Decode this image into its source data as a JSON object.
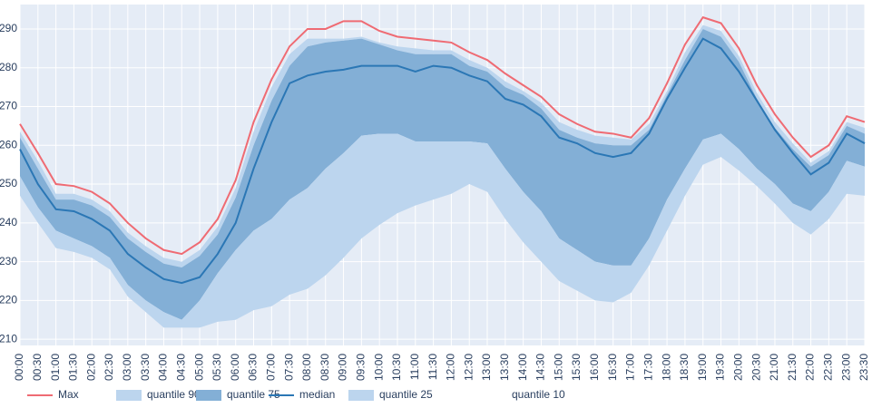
{
  "chart_data": {
    "type": "band",
    "categories": [
      "00:00",
      "00:30",
      "01:00",
      "01:30",
      "02:00",
      "02:30",
      "03:00",
      "03:30",
      "04:00",
      "04:30",
      "05:00",
      "05:30",
      "06:00",
      "06:30",
      "07:00",
      "07:30",
      "08:00",
      "08:30",
      "09:00",
      "09:30",
      "10:00",
      "10:30",
      "11:00",
      "11:30",
      "12:00",
      "12:30",
      "13:00",
      "13:30",
      "14:00",
      "14:30",
      "15:00",
      "15:30",
      "16:00",
      "16:30",
      "17:00",
      "17:30",
      "18:00",
      "18:30",
      "19:00",
      "19:30",
      "20:00",
      "20:30",
      "21:00",
      "21:30",
      "22:00",
      "22:30",
      "23:00",
      "23:30"
    ],
    "series": [
      {
        "name": "Max",
        "mode": "line",
        "color": "#ef6b73",
        "values": [
          265.5,
          258,
          250,
          249.5,
          248,
          245,
          240,
          236,
          233,
          232,
          235,
          241,
          251,
          266,
          277,
          285.5,
          290,
          290,
          292,
          292,
          289.5,
          288,
          287.5,
          287,
          286.5,
          284,
          282,
          278.5,
          275.5,
          272.5,
          268,
          265.5,
          263.5,
          263,
          262,
          267,
          276,
          286,
          293,
          291.5,
          285,
          275.5,
          268,
          262,
          257,
          260,
          267.5,
          266
        ]
      },
      {
        "name": "quantile 90",
        "mode": "band",
        "color": "#bcd5ee",
        "values": [
          263.5,
          256,
          247.5,
          247.5,
          246,
          243,
          237.5,
          234,
          231,
          230,
          233,
          239,
          249,
          263.5,
          275,
          283.5,
          287.5,
          287.5,
          287.5,
          288,
          286.5,
          285.5,
          285,
          284.5,
          284.5,
          282,
          280,
          276.5,
          274,
          271,
          266,
          264,
          262.5,
          262,
          261.5,
          265.5,
          274,
          284,
          291,
          289.5,
          283,
          273.5,
          266,
          260.5,
          255.5,
          258.5,
          266,
          264.5
        ]
      },
      {
        "name": "quantile 75",
        "mode": "band",
        "color": "#83afd6",
        "values": [
          262,
          254,
          246,
          246,
          244.5,
          241.5,
          236,
          232.5,
          229.5,
          228.5,
          231.5,
          237,
          246.5,
          260,
          271.5,
          280.5,
          285.5,
          286.5,
          287,
          287.5,
          286,
          284.5,
          283.5,
          283.5,
          283.5,
          280.5,
          279,
          275,
          273,
          269.5,
          264,
          262,
          260.5,
          260,
          260,
          264,
          273,
          282,
          290,
          288,
          281.5,
          272,
          264.5,
          259,
          254.5,
          257.5,
          265,
          263
        ]
      },
      {
        "name": "median",
        "mode": "line",
        "color": "#2b77b5",
        "values": [
          259,
          250,
          243.5,
          243,
          241,
          238,
          232,
          228.5,
          225.5,
          224.5,
          226,
          232,
          240,
          254,
          266,
          276,
          278,
          279,
          279.5,
          280.5,
          280.5,
          280.5,
          279,
          280.5,
          280,
          278,
          276.5,
          272,
          270.5,
          267.5,
          262,
          260.5,
          258,
          257,
          258,
          263,
          272,
          280,
          287.5,
          285,
          279,
          271.5,
          264,
          258,
          252.5,
          255.5,
          263,
          260.5
        ]
      },
      {
        "name": "quantile 25",
        "mode": "band",
        "color": "#bcd5ee",
        "values": [
          252,
          244,
          238,
          236,
          234,
          231,
          224,
          220,
          217,
          215,
          220,
          227,
          233,
          238,
          241,
          246,
          249,
          254,
          258,
          262.5,
          263,
          263,
          261,
          261,
          261,
          261,
          260.5,
          254,
          248,
          243,
          236,
          233,
          230,
          229,
          229,
          236,
          246,
          254,
          261.5,
          263,
          259,
          254,
          250,
          245,
          243,
          248,
          256,
          254.5
        ]
      },
      {
        "name": "quantile 10",
        "mode": "band",
        "values": [
          247,
          240,
          233.5,
          232.5,
          231,
          228,
          221,
          217,
          213,
          213,
          213,
          214.5,
          215,
          217.5,
          218.5,
          221.5,
          223,
          226.5,
          231,
          236,
          239.5,
          242.5,
          244.5,
          246,
          247.5,
          250,
          248,
          241,
          235,
          230,
          225,
          222.5,
          220,
          219.5,
          222,
          229,
          238,
          247,
          255,
          257,
          253.5,
          249.5,
          245,
          240,
          237,
          241,
          247.5,
          247
        ]
      }
    ],
    "ylim": [
      208.4,
      296.3
    ],
    "yticks": [
      210,
      220,
      230,
      240,
      250,
      260,
      270,
      280,
      290
    ],
    "grid": true
  }
}
